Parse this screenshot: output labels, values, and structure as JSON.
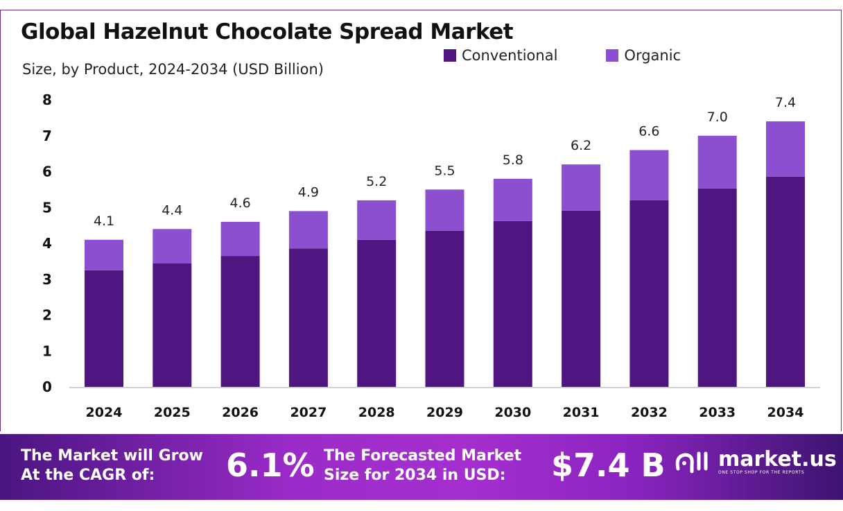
{
  "chart_data": {
    "type": "bar",
    "stacked": true,
    "title": "Global Hazelnut Chocolate Spread Market",
    "subtitle": "Size, by Product, 2024-2034 (USD Billion)",
    "categories": [
      "2024",
      "2025",
      "2026",
      "2027",
      "2028",
      "2029",
      "2030",
      "2031",
      "2032",
      "2033",
      "2034"
    ],
    "series": [
      {
        "name": "Conventional",
        "color": "#4f1681",
        "values": [
          3.25,
          3.44,
          3.65,
          3.86,
          4.1,
          4.35,
          4.62,
          4.91,
          5.2,
          5.53,
          5.86
        ]
      },
      {
        "name": "Organic",
        "color": "#8b4fcf",
        "values": [
          0.85,
          0.96,
          0.95,
          1.04,
          1.1,
          1.15,
          1.18,
          1.29,
          1.4,
          1.47,
          1.54
        ]
      }
    ],
    "total_labels": [
      "4.1",
      "4.4",
      "4.6",
      "4.9",
      "5.2",
      "5.5",
      "5.8",
      "6.2",
      "6.6",
      "7.0",
      "7.4"
    ],
    "yticks": [
      "0",
      "1",
      "2",
      "3",
      "4",
      "5",
      "6",
      "7",
      "8"
    ],
    "ylim": [
      0,
      8
    ],
    "grid": false,
    "legend": "top-right"
  },
  "footer": {
    "cagr_label_line1": "The Market will Grow",
    "cagr_label_line2": "At the CAGR of:",
    "cagr_value": "6.1%",
    "forecast_label_line1": "The Forecasted Market",
    "forecast_label_line2": "Size for 2034 in USD:",
    "forecast_value": "$7.4 B",
    "logo_name": "market.us",
    "logo_tagline": "ONE STOP SHOP FOR THE REPORTS"
  }
}
